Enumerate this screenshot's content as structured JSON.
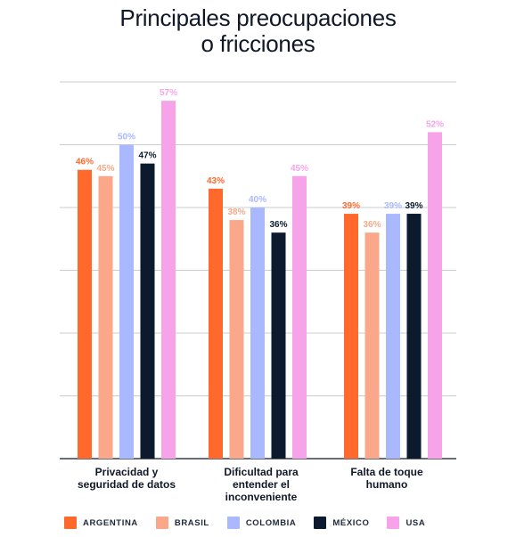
{
  "title_lines": [
    "Principales preocupaciones",
    "o fricciones"
  ],
  "chart_data": {
    "type": "bar",
    "categories": [
      [
        "Privacidad y",
        "seguridad de datos"
      ],
      [
        "Dificultad para",
        "entender el",
        "inconveniente"
      ],
      [
        "Falta de toque",
        "humano"
      ]
    ],
    "series": [
      {
        "name": "ARGENTINA",
        "color": "#ff6a2c",
        "values": [
          46,
          43,
          39
        ]
      },
      {
        "name": "BRASIL",
        "color": "#fba88a",
        "values": [
          45,
          38,
          36
        ]
      },
      {
        "name": "COLOMBIA",
        "color": "#a9b8ff",
        "values": [
          50,
          40,
          39
        ]
      },
      {
        "name": "MÉXICO",
        "color": "#0b1a2c",
        "values": [
          47,
          36,
          39
        ]
      },
      {
        "name": "USA",
        "color": "#f7a3ea",
        "values": [
          57,
          45,
          52
        ]
      }
    ],
    "label_suffix": "%",
    "ylim": [
      0,
      60
    ],
    "grid": true,
    "legend": "bottom"
  }
}
